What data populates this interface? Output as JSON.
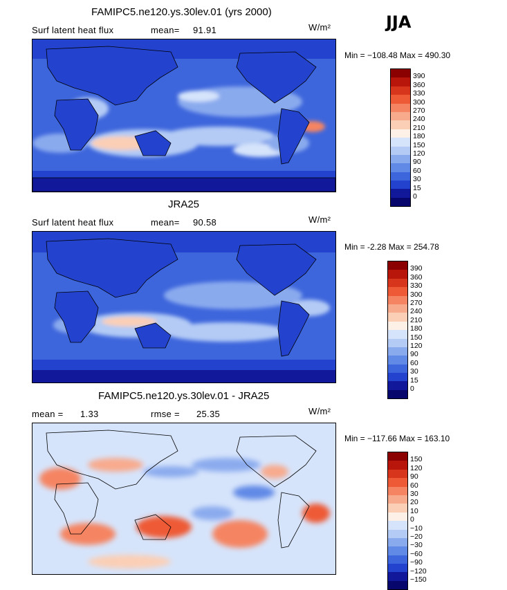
{
  "season": "JJA",
  "panels": [
    {
      "title": "FAMIPC5.ne120.ys.30lev.01 (yrs 2000)",
      "variable": "Surf latent heat flux",
      "stat1_label": "mean=",
      "stat1_value": "91.91",
      "stat2_label": "",
      "stat2_value": "",
      "units": "W/m²",
      "minmax": "Min = −108.48 Max = 490.30",
      "colorbar_levels": [
        "390",
        "360",
        "330",
        "300",
        "270",
        "240",
        "210",
        "180",
        "150",
        "120",
        "90",
        "60",
        "30",
        "15",
        "0"
      ],
      "colorbar_colors": [
        "#8b0000",
        "#b8160b",
        "#d8361c",
        "#ee5a36",
        "#f58462",
        "#f8aa8d",
        "#fbcfb6",
        "#fdf0e6",
        "#d6e4fb",
        "#b3cbf5",
        "#8aaaee",
        "#6189e6",
        "#3e66dc",
        "#2343cf",
        "#11199a",
        "#06066d"
      ]
    },
    {
      "title": "JRA25",
      "variable": "Surf latent heat flux",
      "stat1_label": "mean=",
      "stat1_value": "90.58",
      "stat2_label": "",
      "stat2_value": "",
      "units": "W/m²",
      "minmax": "Min = -2.28 Max = 254.78",
      "colorbar_levels": [
        "390",
        "360",
        "330",
        "300",
        "270",
        "240",
        "210",
        "180",
        "150",
        "120",
        "90",
        "60",
        "30",
        "15",
        "0"
      ],
      "colorbar_colors": [
        "#8b0000",
        "#b8160b",
        "#d8361c",
        "#ee5a36",
        "#f58462",
        "#f8aa8d",
        "#fbcfb6",
        "#fdf0e6",
        "#d6e4fb",
        "#b3cbf5",
        "#8aaaee",
        "#6189e6",
        "#3e66dc",
        "#2343cf",
        "#11199a",
        "#06066d"
      ]
    },
    {
      "title": "FAMIPC5.ne120.ys.30lev.01 - JRA25",
      "variable": "",
      "stat1_label": "mean =",
      "stat1_value": "1.33",
      "stat2_label": "rmse =",
      "stat2_value": "25.35",
      "units": "W/m²",
      "minmax": "Min = −117.66 Max = 163.10",
      "colorbar_levels": [
        "150",
        "120",
        "90",
        "60",
        "30",
        "20",
        "10",
        "0",
        "−10",
        "−20",
        "−30",
        "−60",
        "−90",
        "−120",
        "−150"
      ],
      "colorbar_colors": [
        "#8b0000",
        "#b8160b",
        "#d8361c",
        "#ee5a36",
        "#f58462",
        "#f8aa8d",
        "#fbcfb6",
        "#fdf0e6",
        "#d6e4fb",
        "#b3cbf5",
        "#8aaaee",
        "#6189e6",
        "#3e66dc",
        "#2343cf",
        "#11199a",
        "#06066d"
      ]
    }
  ]
}
